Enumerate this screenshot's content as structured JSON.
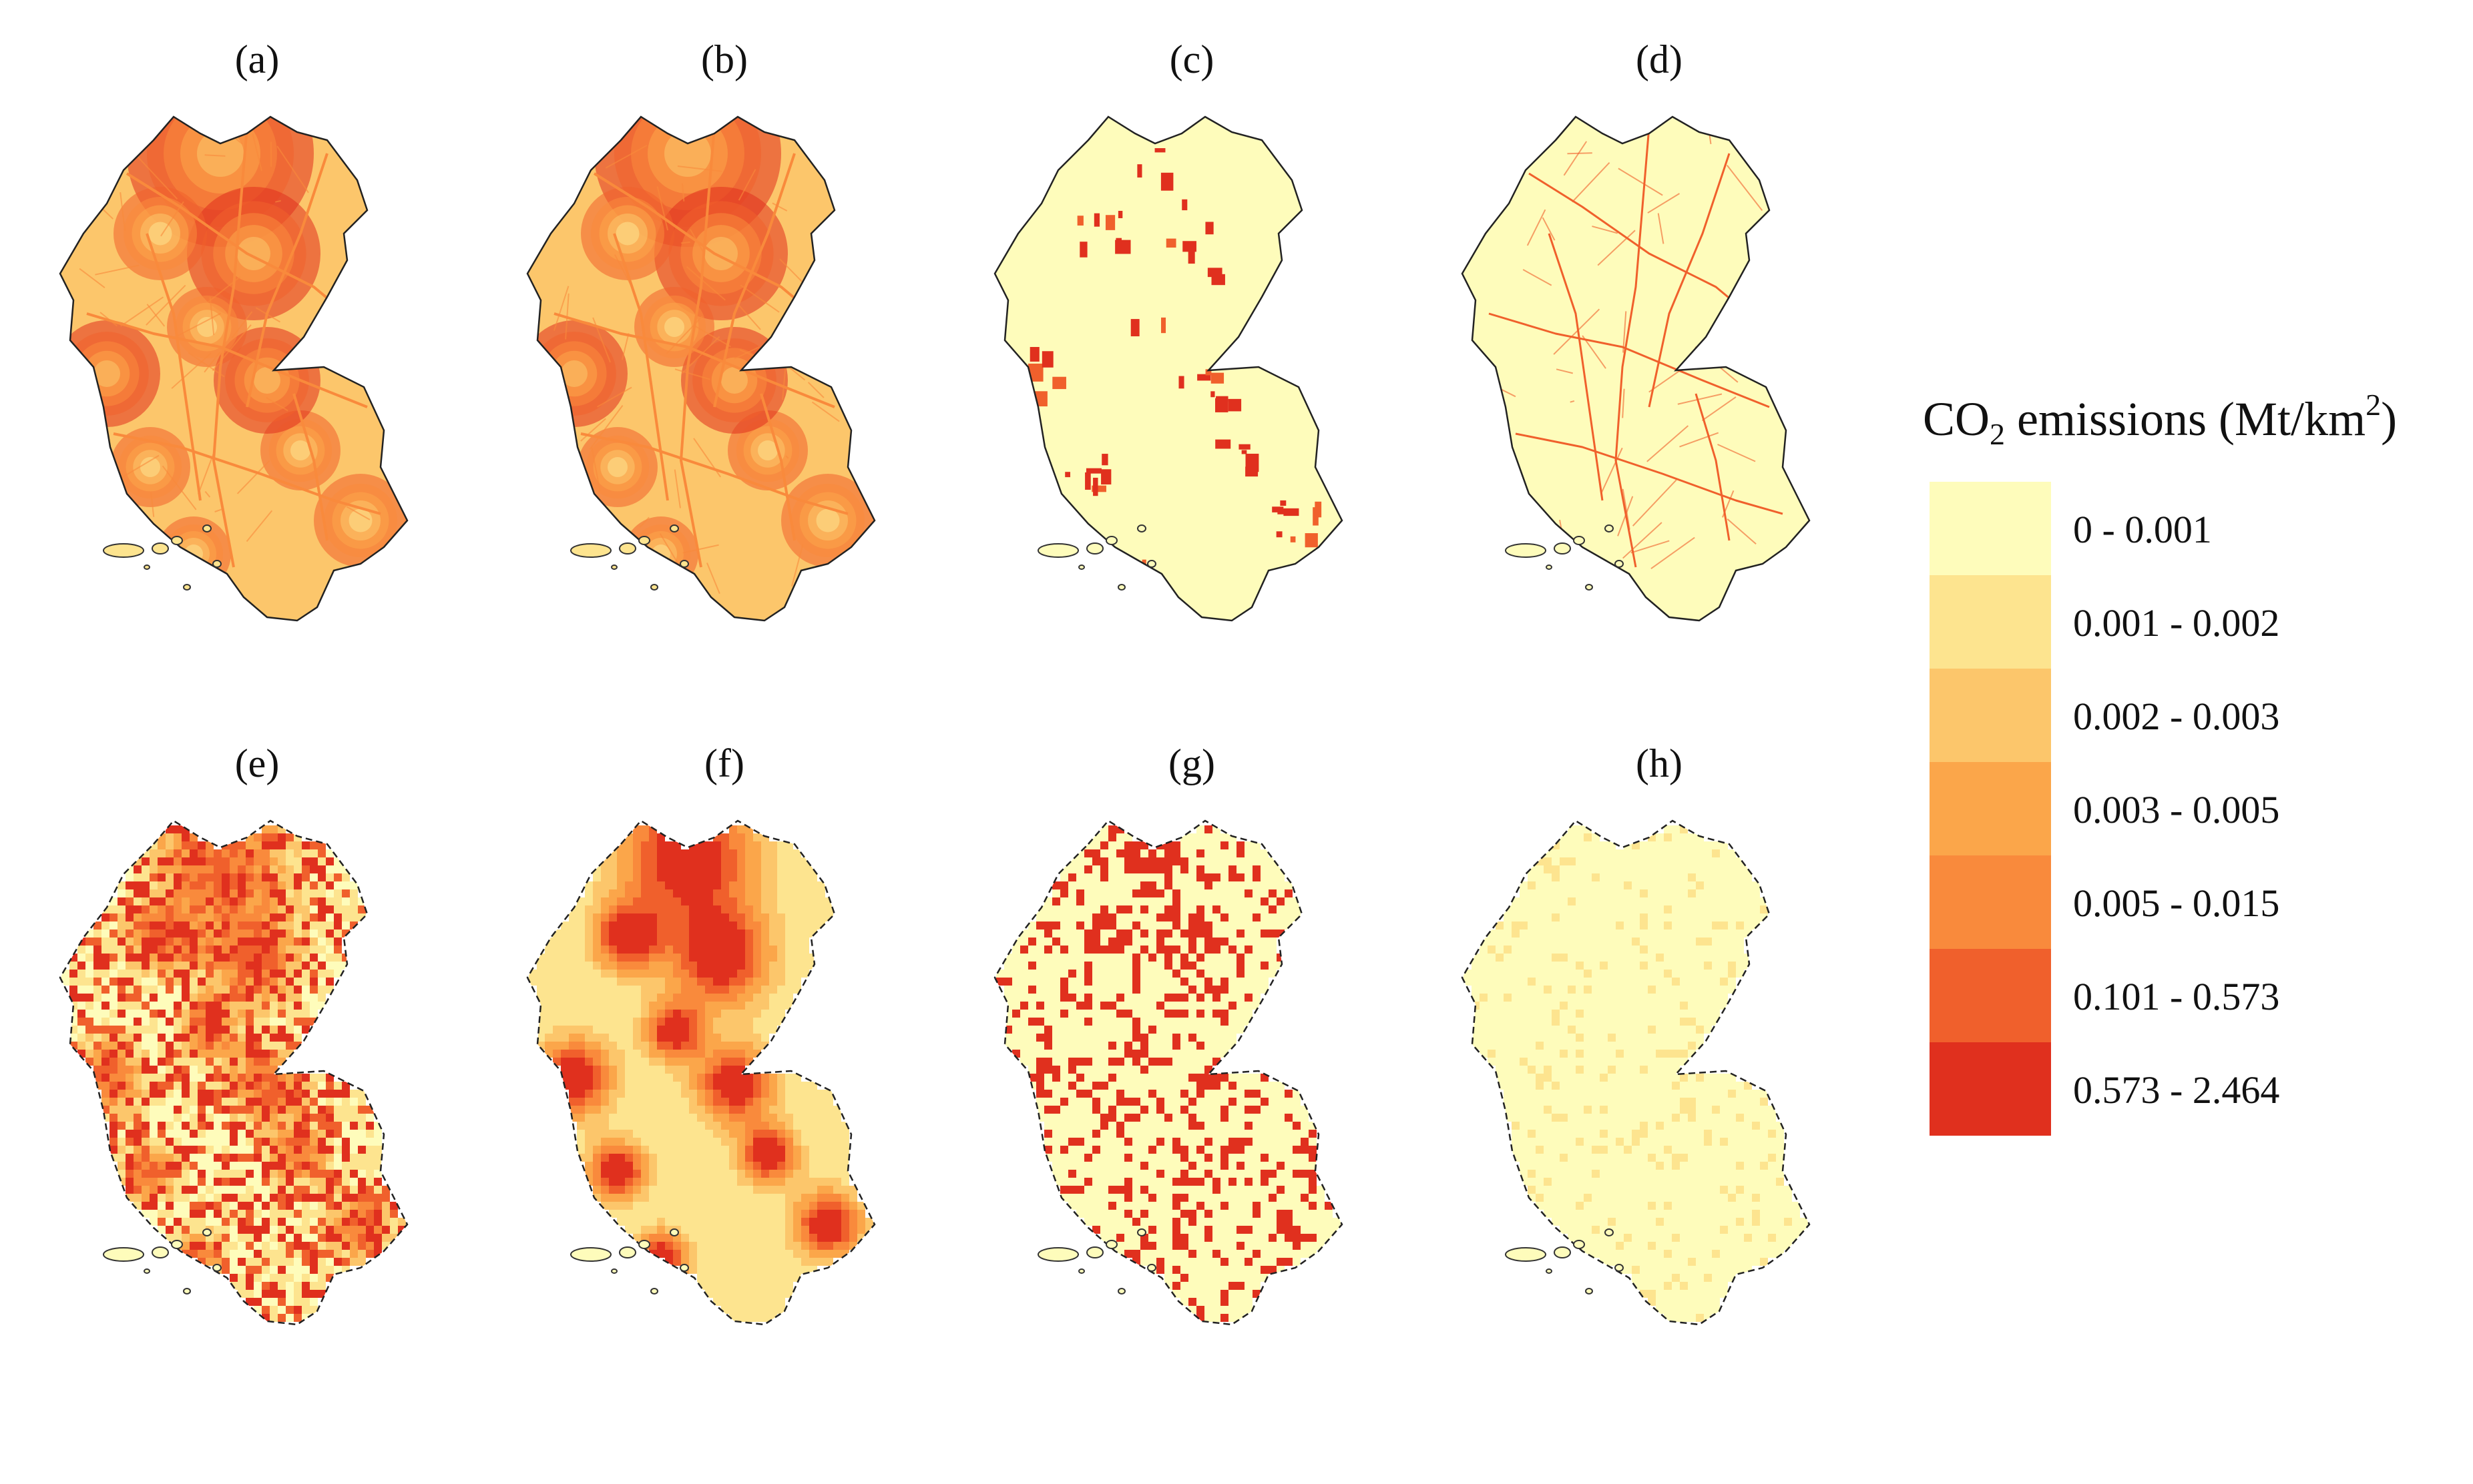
{
  "panels": [
    {
      "label": "(a)",
      "style": "smooth"
    },
    {
      "label": "(b)",
      "style": "smooth"
    },
    {
      "label": "(c)",
      "style": "patches"
    },
    {
      "label": "(d)",
      "style": "roads"
    },
    {
      "label": "(e)",
      "style": "grid"
    },
    {
      "label": "(f)",
      "style": "grid-smooth"
    },
    {
      "label": "(g)",
      "style": "grid-patches"
    },
    {
      "label": "(h)",
      "style": "grid-roads"
    }
  ],
  "legend": {
    "title_prefix": "CO",
    "title_sub": "2",
    "title_middle": " emissions (Mt/km",
    "title_sup": "2",
    "title_suffix": ")",
    "classes": [
      {
        "label": "0 - 0.001",
        "color": "#fefcbb"
      },
      {
        "label": "0.001 - 0.002",
        "color": "#fde48f"
      },
      {
        "label": "0.002 - 0.003",
        "color": "#fcc66b"
      },
      {
        "label": "0.003 - 0.005",
        "color": "#fba64a"
      },
      {
        "label": "0.005 - 0.015",
        "color": "#f98a3c"
      },
      {
        "label": "0.101 - 0.573",
        "color": "#f0602c"
      },
      {
        "label": "0.573 - 2.464",
        "color": "#e0301e"
      }
    ]
  }
}
